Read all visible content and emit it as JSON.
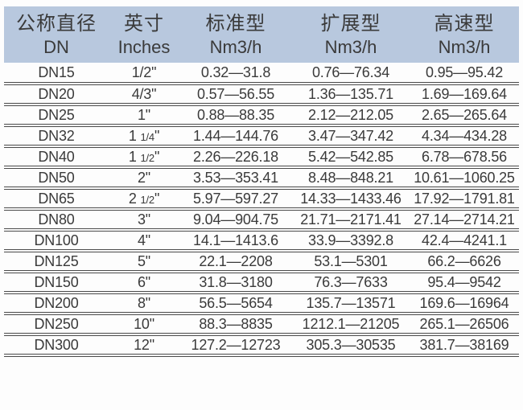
{
  "colors": {
    "header_bg": "#b8c8de",
    "line": "#4a4a4a",
    "text": "#3a3a3a"
  },
  "table": {
    "columns": [
      {
        "zh": "公称直径",
        "sub": "DN"
      },
      {
        "zh": "英寸",
        "sub": "Inches"
      },
      {
        "zh": "标准型",
        "sub": "Nm3/h"
      },
      {
        "zh": "扩展型",
        "sub": "Nm3/h"
      },
      {
        "zh": "高速型",
        "sub": "Nm3/h"
      }
    ],
    "rows": [
      [
        "DN15",
        "1/2\"",
        "0.32—31.8",
        "0.76—76.34",
        "0.95—95.42"
      ],
      [
        "DN20",
        "4/3\"",
        "0.57—56.55",
        "1.36—135.71",
        "1.69—169.64"
      ],
      [
        "DN25",
        "1\"",
        "0.88—88.35",
        "2.12—212.05",
        "2.65—265.64"
      ],
      [
        "DN32",
        "1 1/4\"",
        "1.44—144.76",
        "3.47—347.42",
        "4.34—434.28"
      ],
      [
        "DN40",
        "1 1/2\"",
        "2.26—226.18",
        "5.42—542.85",
        "6.78—678.56"
      ],
      [
        "DN50",
        "2\"",
        "3.53—353.41",
        "8.48—848.21",
        "10.61—1060.25"
      ],
      [
        "DN65",
        "2 1/2\"",
        "5.97—597.27",
        "14.33—1433.46",
        "17.92—1791.81"
      ],
      [
        "DN80",
        "3\"",
        "9.04—904.75",
        "21.71—2171.41",
        "27.14—2714.21"
      ],
      [
        "DN100",
        "4\"",
        "14.1—1413.6",
        "33.9—3392.8",
        "42.4—4241.1"
      ],
      [
        "DN125",
        "5\"",
        "22.1—2208",
        "53.1—5301",
        "66.2—6626"
      ],
      [
        "DN150",
        "6\"",
        "31.8—3180",
        "76.3—7633",
        "95.4—9542"
      ],
      [
        "DN200",
        "8\"",
        "56.5—5654",
        "135.7—13571",
        "169.6—16964"
      ],
      [
        "DN250",
        "10\"",
        "88.3—8835",
        "1212.1—21205",
        "265.1—26506"
      ],
      [
        "DN300",
        "12\"",
        "127.2—12723",
        "305.3—30535",
        "381.7—38169"
      ]
    ]
  }
}
